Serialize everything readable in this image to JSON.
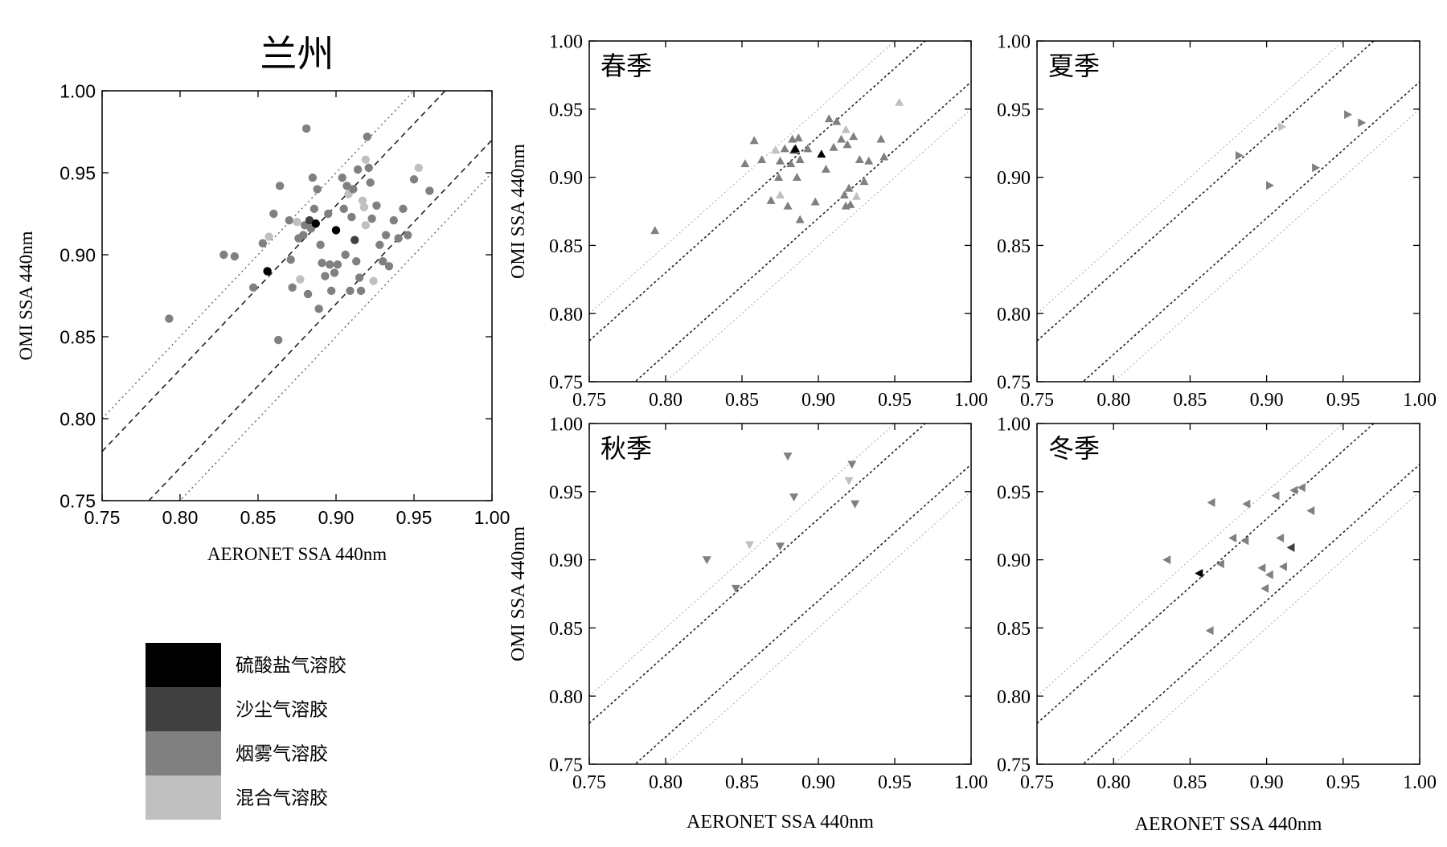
{
  "colors": {
    "sulfate": "#000000",
    "dust": "#404040",
    "smoke": "#808080",
    "mixed": "#c0c0c0"
  },
  "legend": [
    {
      "key": "sulfate",
      "label": "硫酸盐气溶胶"
    },
    {
      "key": "dust",
      "label": "沙尘气溶胶"
    },
    {
      "key": "smoke",
      "label": "烟雾气溶胶"
    },
    {
      "key": "mixed",
      "label": "混合气溶胶"
    }
  ],
  "chart_data": [
    {
      "type": "scatter",
      "title": "兰州",
      "xlabel": "AERONET SSA 440nm",
      "ylabel": "OMI SSA 440nm",
      "xlim": [
        0.75,
        1.0
      ],
      "ylim": [
        0.75,
        1.0
      ],
      "xticks": [
        "0.75",
        "0.80",
        "0.85",
        "0.90",
        "0.95",
        "1.00"
      ],
      "yticks": [
        "0.75",
        "0.80",
        "0.85",
        "0.90",
        "0.95",
        "1.00"
      ],
      "marker": "circle",
      "reference_lines": [
        {
          "offset": 0.03,
          "style": "dashed"
        },
        {
          "offset": -0.03,
          "style": "dashed"
        },
        {
          "offset": 0.05,
          "style": "dotted"
        },
        {
          "offset": -0.05,
          "style": "dotted"
        }
      ],
      "points": [
        [
          0.793,
          0.861,
          "smoke"
        ],
        [
          0.828,
          0.9,
          "smoke"
        ],
        [
          0.835,
          0.899,
          "smoke"
        ],
        [
          0.847,
          0.88,
          "smoke"
        ],
        [
          0.853,
          0.907,
          "smoke"
        ],
        [
          0.856,
          0.89,
          "sulfate"
        ],
        [
          0.857,
          0.911,
          "mixed"
        ],
        [
          0.86,
          0.925,
          "smoke"
        ],
        [
          0.863,
          0.848,
          "smoke"
        ],
        [
          0.864,
          0.942,
          "smoke"
        ],
        [
          0.87,
          0.921,
          "smoke"
        ],
        [
          0.871,
          0.897,
          "smoke"
        ],
        [
          0.872,
          0.88,
          "smoke"
        ],
        [
          0.875,
          0.92,
          "mixed"
        ],
        [
          0.876,
          0.91,
          "smoke"
        ],
        [
          0.877,
          0.885,
          "mixed"
        ],
        [
          0.879,
          0.912,
          "smoke"
        ],
        [
          0.88,
          0.918,
          "smoke"
        ],
        [
          0.881,
          0.977,
          "smoke"
        ],
        [
          0.882,
          0.876,
          "smoke"
        ],
        [
          0.883,
          0.921,
          "dust"
        ],
        [
          0.884,
          0.916,
          "smoke"
        ],
        [
          0.885,
          0.947,
          "smoke"
        ],
        [
          0.886,
          0.928,
          "smoke"
        ],
        [
          0.887,
          0.919,
          "sulfate"
        ],
        [
          0.888,
          0.94,
          "smoke"
        ],
        [
          0.889,
          0.867,
          "smoke"
        ],
        [
          0.89,
          0.906,
          "smoke"
        ],
        [
          0.891,
          0.895,
          "smoke"
        ],
        [
          0.893,
          0.887,
          "smoke"
        ],
        [
          0.895,
          0.925,
          "smoke"
        ],
        [
          0.896,
          0.894,
          "smoke"
        ],
        [
          0.897,
          0.878,
          "smoke"
        ],
        [
          0.899,
          0.889,
          "smoke"
        ],
        [
          0.9,
          0.915,
          "sulfate"
        ],
        [
          0.901,
          0.894,
          "smoke"
        ],
        [
          0.904,
          0.947,
          "smoke"
        ],
        [
          0.905,
          0.928,
          "smoke"
        ],
        [
          0.906,
          0.9,
          "smoke"
        ],
        [
          0.907,
          0.942,
          "smoke"
        ],
        [
          0.908,
          0.937,
          "mixed"
        ],
        [
          0.909,
          0.878,
          "smoke"
        ],
        [
          0.91,
          0.923,
          "smoke"
        ],
        [
          0.911,
          0.94,
          "smoke"
        ],
        [
          0.912,
          0.909,
          "dust"
        ],
        [
          0.913,
          0.896,
          "smoke"
        ],
        [
          0.914,
          0.952,
          "smoke"
        ],
        [
          0.915,
          0.886,
          "smoke"
        ],
        [
          0.916,
          0.878,
          "smoke"
        ],
        [
          0.917,
          0.933,
          "mixed"
        ],
        [
          0.918,
          0.929,
          "mixed"
        ],
        [
          0.919,
          0.958,
          "mixed"
        ],
        [
          0.919,
          0.918,
          "mixed"
        ],
        [
          0.92,
          0.972,
          "smoke"
        ],
        [
          0.921,
          0.953,
          "smoke"
        ],
        [
          0.922,
          0.944,
          "smoke"
        ],
        [
          0.923,
          0.922,
          "smoke"
        ],
        [
          0.924,
          0.884,
          "mixed"
        ],
        [
          0.926,
          0.93,
          "smoke"
        ],
        [
          0.928,
          0.906,
          "smoke"
        ],
        [
          0.93,
          0.896,
          "smoke"
        ],
        [
          0.932,
          0.912,
          "smoke"
        ],
        [
          0.934,
          0.893,
          "smoke"
        ],
        [
          0.937,
          0.921,
          "smoke"
        ],
        [
          0.94,
          0.91,
          "smoke"
        ],
        [
          0.943,
          0.928,
          "smoke"
        ],
        [
          0.946,
          0.912,
          "smoke"
        ],
        [
          0.95,
          0.946,
          "smoke"
        ],
        [
          0.953,
          0.953,
          "mixed"
        ],
        [
          0.96,
          0.939,
          "smoke"
        ]
      ]
    },
    {
      "type": "scatter",
      "title": "春季",
      "xlabel": "",
      "ylabel": "OMI SSA 440nm",
      "xlim": [
        0.75,
        1.0
      ],
      "ylim": [
        0.75,
        1.0
      ],
      "xticks": [
        "0.75",
        "0.80",
        "0.85",
        "0.90",
        "0.95",
        "1.00"
      ],
      "yticks": [
        "0.75",
        "0.80",
        "0.85",
        "0.90",
        "0.95",
        "1.00"
      ],
      "marker": "triangle-up",
      "reference_lines": [
        {
          "offset": 0.03,
          "style": "dotted-dense"
        },
        {
          "offset": -0.03,
          "style": "dotted-dense"
        },
        {
          "offset": 0.05,
          "style": "dotted-light"
        },
        {
          "offset": -0.05,
          "style": "dotted-light"
        }
      ],
      "points": [
        [
          0.793,
          0.861,
          "smoke"
        ],
        [
          0.852,
          0.91,
          "smoke"
        ],
        [
          0.858,
          0.927,
          "smoke"
        ],
        [
          0.863,
          0.913,
          "smoke"
        ],
        [
          0.869,
          0.883,
          "smoke"
        ],
        [
          0.872,
          0.92,
          "mixed"
        ],
        [
          0.874,
          0.9,
          "smoke"
        ],
        [
          0.875,
          0.912,
          "smoke"
        ],
        [
          0.875,
          0.887,
          "mixed"
        ],
        [
          0.878,
          0.921,
          "smoke"
        ],
        [
          0.88,
          0.879,
          "smoke"
        ],
        [
          0.882,
          0.91,
          "smoke"
        ],
        [
          0.883,
          0.928,
          "smoke"
        ],
        [
          0.884,
          0.92,
          "dust"
        ],
        [
          0.885,
          0.921,
          "sulfate"
        ],
        [
          0.886,
          0.9,
          "smoke"
        ],
        [
          0.887,
          0.929,
          "smoke"
        ],
        [
          0.888,
          0.913,
          "smoke"
        ],
        [
          0.888,
          0.869,
          "smoke"
        ],
        [
          0.893,
          0.921,
          "smoke"
        ],
        [
          0.898,
          0.882,
          "smoke"
        ],
        [
          0.902,
          0.917,
          "sulfate"
        ],
        [
          0.905,
          0.906,
          "smoke"
        ],
        [
          0.907,
          0.943,
          "smoke"
        ],
        [
          0.91,
          0.922,
          "smoke"
        ],
        [
          0.912,
          0.941,
          "smoke"
        ],
        [
          0.915,
          0.928,
          "smoke"
        ],
        [
          0.917,
          0.887,
          "smoke"
        ],
        [
          0.918,
          0.935,
          "mixed"
        ],
        [
          0.918,
          0.879,
          "smoke"
        ],
        [
          0.919,
          0.924,
          "smoke"
        ],
        [
          0.92,
          0.892,
          "smoke"
        ],
        [
          0.921,
          0.88,
          "smoke"
        ],
        [
          0.923,
          0.93,
          "smoke"
        ],
        [
          0.925,
          0.886,
          "mixed"
        ],
        [
          0.927,
          0.913,
          "smoke"
        ],
        [
          0.93,
          0.897,
          "smoke"
        ],
        [
          0.933,
          0.912,
          "smoke"
        ],
        [
          0.941,
          0.928,
          "smoke"
        ],
        [
          0.943,
          0.915,
          "smoke"
        ],
        [
          0.953,
          0.955,
          "mixed"
        ]
      ]
    },
    {
      "type": "scatter",
      "title": "夏季",
      "xlabel": "",
      "ylabel": "",
      "xlim": [
        0.75,
        1.0
      ],
      "ylim": [
        0.75,
        1.0
      ],
      "xticks": [
        "0.75",
        "0.80",
        "0.85",
        "0.90",
        "0.95",
        "1.00"
      ],
      "yticks": [
        "0.75",
        "0.80",
        "0.85",
        "0.90",
        "0.95",
        "1.00"
      ],
      "marker": "triangle-right",
      "reference_lines": [
        {
          "offset": 0.03,
          "style": "dotted-dense"
        },
        {
          "offset": -0.03,
          "style": "dotted-dense"
        },
        {
          "offset": 0.05,
          "style": "dotted-light"
        },
        {
          "offset": -0.05,
          "style": "dotted-light"
        }
      ],
      "points": [
        [
          0.882,
          0.916,
          "smoke"
        ],
        [
          0.902,
          0.894,
          "smoke"
        ],
        [
          0.91,
          0.937,
          "mixed"
        ],
        [
          0.932,
          0.907,
          "smoke"
        ],
        [
          0.953,
          0.946,
          "smoke"
        ],
        [
          0.962,
          0.94,
          "smoke"
        ]
      ]
    },
    {
      "type": "scatter",
      "title": "秋季",
      "xlabel": "AERONET SSA 440nm",
      "ylabel": "OMI SSA 440nm",
      "xlim": [
        0.75,
        1.0
      ],
      "ylim": [
        0.75,
        1.0
      ],
      "xticks": [
        "0.75",
        "0.80",
        "0.85",
        "0.90",
        "0.95",
        "1.00"
      ],
      "yticks": [
        "0.75",
        "0.80",
        "0.85",
        "0.90",
        "0.95",
        "1.00"
      ],
      "marker": "triangle-down",
      "reference_lines": [
        {
          "offset": 0.03,
          "style": "dotted-dense"
        },
        {
          "offset": -0.03,
          "style": "dotted-dense"
        },
        {
          "offset": 0.05,
          "style": "dotted-light"
        },
        {
          "offset": -0.05,
          "style": "dotted-light"
        }
      ],
      "points": [
        [
          0.827,
          0.9,
          "smoke"
        ],
        [
          0.846,
          0.879,
          "smoke"
        ],
        [
          0.855,
          0.911,
          "mixed"
        ],
        [
          0.875,
          0.91,
          "smoke"
        ],
        [
          0.88,
          0.976,
          "smoke"
        ],
        [
          0.884,
          0.946,
          "smoke"
        ],
        [
          0.92,
          0.958,
          "mixed"
        ],
        [
          0.922,
          0.97,
          "smoke"
        ],
        [
          0.924,
          0.941,
          "smoke"
        ]
      ]
    },
    {
      "type": "scatter",
      "title": "冬季",
      "xlabel": "AERONET SSA 440nm",
      "ylabel": "",
      "xlim": [
        0.75,
        1.0
      ],
      "ylim": [
        0.75,
        1.0
      ],
      "xticks": [
        "0.75",
        "0.80",
        "0.85",
        "0.90",
        "0.95",
        "1.00"
      ],
      "yticks": [
        "0.75",
        "0.80",
        "0.85",
        "0.90",
        "0.95",
        "1.00"
      ],
      "marker": "triangle-left",
      "reference_lines": [
        {
          "offset": 0.03,
          "style": "dotted-dense"
        },
        {
          "offset": -0.03,
          "style": "dotted-dense"
        },
        {
          "offset": 0.05,
          "style": "dotted-light"
        },
        {
          "offset": -0.05,
          "style": "dotted-light"
        }
      ],
      "points": [
        [
          0.835,
          0.9,
          "smoke"
        ],
        [
          0.856,
          0.89,
          "sulfate"
        ],
        [
          0.863,
          0.848,
          "smoke"
        ],
        [
          0.864,
          0.942,
          "smoke"
        ],
        [
          0.87,
          0.897,
          "smoke"
        ],
        [
          0.878,
          0.916,
          "smoke"
        ],
        [
          0.886,
          0.914,
          "smoke"
        ],
        [
          0.887,
          0.941,
          "smoke"
        ],
        [
          0.897,
          0.894,
          "smoke"
        ],
        [
          0.899,
          0.879,
          "smoke"
        ],
        [
          0.902,
          0.889,
          "smoke"
        ],
        [
          0.906,
          0.947,
          "smoke"
        ],
        [
          0.909,
          0.916,
          "smoke"
        ],
        [
          0.911,
          0.895,
          "smoke"
        ],
        [
          0.916,
          0.909,
          "dust"
        ],
        [
          0.918,
          0.951,
          "smoke"
        ],
        [
          0.923,
          0.953,
          "smoke"
        ],
        [
          0.929,
          0.936,
          "smoke"
        ]
      ]
    }
  ]
}
